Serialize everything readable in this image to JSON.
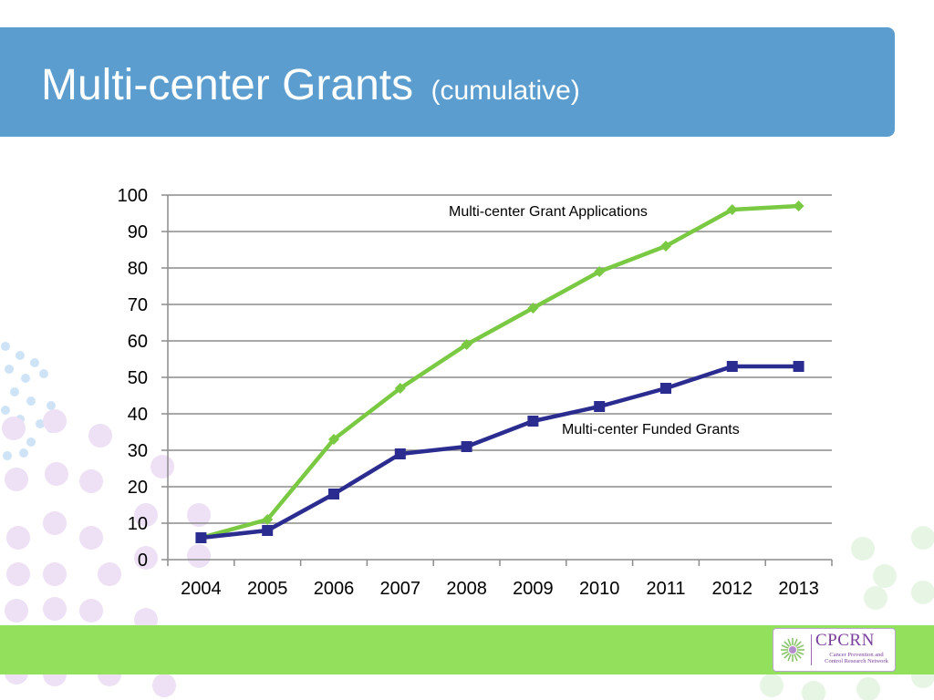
{
  "slide": {
    "title": "Multi-center Grants",
    "title_suffix": "(cumulative)"
  },
  "logo": {
    "name": "CPCRN",
    "tagline": "Cancer Prevention and Control Research Network",
    "color": "#7a3e9d"
  },
  "colors": {
    "title_bar": "#5b9dcf",
    "bottom_band": "#92e05c",
    "applications_line": "#7ac943",
    "funded_line": "#2b2c8f"
  },
  "chart_data": {
    "type": "line",
    "x": [
      "2004",
      "2005",
      "2006",
      "2007",
      "2008",
      "2009",
      "2010",
      "2011",
      "2012",
      "2013"
    ],
    "ylim": [
      0,
      100
    ],
    "yticks": [
      0,
      10,
      20,
      30,
      40,
      50,
      60,
      70,
      80,
      90,
      100
    ],
    "grid": true,
    "series": [
      {
        "name": "Multi-center Grant Applications",
        "values": [
          6,
          11,
          33,
          47,
          59,
          69,
          79,
          86,
          96,
          97
        ],
        "marker": "diamond"
      },
      {
        "name": "Multi-center Funded Grants",
        "values": [
          6,
          8,
          18,
          29,
          31,
          38,
          42,
          47,
          53,
          53
        ],
        "marker": "square"
      }
    ]
  }
}
